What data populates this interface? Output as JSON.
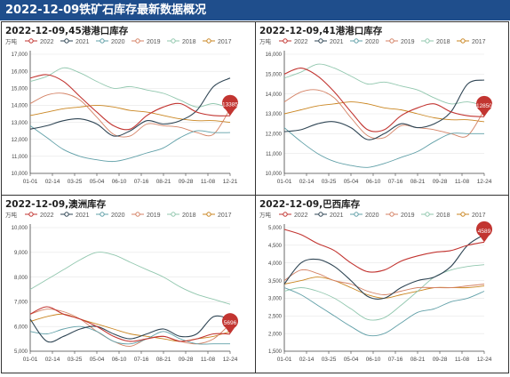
{
  "page_title": "2022-12-09铁矿石库存最新数据概况",
  "colors": {
    "2022": "#c23531",
    "2021": "#2f4554",
    "2020": "#61a0a8",
    "2019": "#d48265",
    "2018": "#91c7ae",
    "2017": "#ca8622"
  },
  "chart_data": [
    {
      "type": "line",
      "title": "2022-12-09,45港港口库存",
      "unit_label": "万吨",
      "x_ticks": [
        "01-01",
        "02-14",
        "03-25",
        "05-04",
        "06-10",
        "07-16",
        "08-21",
        "09-28",
        "11-08",
        "12-21"
      ],
      "ylim": [
        10000,
        17000
      ],
      "y_ticks": [
        "10,000",
        "11,000",
        "12,000",
        "13,000",
        "14,000",
        "15,000",
        "16,000",
        "17,000"
      ],
      "callout": "13385",
      "series": [
        {
          "name": "2022",
          "values": [
            15600,
            15800,
            15400,
            14500,
            13600,
            12800,
            12600,
            13400,
            13900,
            14100,
            13600,
            13400,
            13385
          ]
        },
        {
          "name": "2021",
          "values": [
            12600,
            12800,
            13100,
            13200,
            12900,
            12200,
            12500,
            13100,
            12900,
            13100,
            13700,
            15100,
            15600
          ]
        },
        {
          "name": "2020",
          "values": [
            12800,
            12100,
            11400,
            11000,
            10800,
            10700,
            10900,
            11200,
            11500,
            12100,
            12500,
            12400,
            12400
          ]
        },
        {
          "name": "2019",
          "values": [
            14100,
            14600,
            14700,
            14300,
            13300,
            12300,
            12200,
            12900,
            12800,
            12700,
            12400,
            12300,
            13800
          ]
        },
        {
          "name": "2018",
          "values": [
            15400,
            15700,
            16200,
            15900,
            15400,
            15000,
            15100,
            14900,
            14700,
            14300,
            13900,
            14100,
            13800
          ]
        },
        {
          "name": "2017",
          "values": [
            13400,
            13600,
            13800,
            13900,
            14000,
            13900,
            13700,
            13600,
            13400,
            13200,
            13100,
            13100,
            13000
          ]
        }
      ]
    },
    {
      "type": "line",
      "title": "2022-12-09,41港港口库存",
      "unit_label": "万吨",
      "x_ticks": [
        "01-01",
        "02-14",
        "03-25",
        "05-04",
        "06-10",
        "07-16",
        "08-21",
        "09-28",
        "11-08",
        "12-24"
      ],
      "ylim": [
        10000,
        16000
      ],
      "y_ticks": [
        "10,000",
        "11,000",
        "12,000",
        "13,000",
        "14,000",
        "15,000",
        "16,000"
      ],
      "callout": "12850",
      "series": [
        {
          "name": "2022",
          "values": [
            15000,
            15300,
            14900,
            14100,
            13100,
            12200,
            12200,
            12900,
            13300,
            13500,
            13100,
            12900,
            12850
          ]
        },
        {
          "name": "2021",
          "values": [
            12100,
            12200,
            12500,
            12600,
            12300,
            11700,
            12000,
            12500,
            12300,
            12500,
            13100,
            14500,
            14700
          ]
        },
        {
          "name": "2020",
          "values": [
            12300,
            11600,
            11000,
            10600,
            10400,
            10300,
            10500,
            10800,
            11100,
            11600,
            12000,
            12000,
            12000
          ]
        },
        {
          "name": "2019",
          "values": [
            13600,
            14100,
            14200,
            13800,
            12800,
            11900,
            11800,
            12400,
            12300,
            12200,
            12000,
            11900,
            13200
          ]
        },
        {
          "name": "2018",
          "values": [
            14800,
            15100,
            15500,
            15300,
            14900,
            14500,
            14600,
            14400,
            14200,
            13800,
            13500,
            13600,
            13400
          ]
        },
        {
          "name": "2017",
          "values": [
            13000,
            13200,
            13400,
            13500,
            13600,
            13500,
            13300,
            13200,
            13000,
            12800,
            12700,
            12700,
            12600
          ]
        }
      ]
    },
    {
      "type": "line",
      "title": "2022-12-09,澳洲库存",
      "unit_label": "万吨",
      "x_ticks": [
        "01-01",
        "02-14",
        "03-25",
        "05-04",
        "06-10",
        "07-16",
        "08-21",
        "09-28",
        "11-08",
        "12-24"
      ],
      "ylim": [
        5000,
        10000
      ],
      "y_ticks": [
        "5,000",
        "6,000",
        "7,000",
        "8,000",
        "9,000",
        "10,000"
      ],
      "callout": "5696",
      "series": [
        {
          "name": "2022",
          "values": [
            6500,
            6800,
            6500,
            6300,
            6000,
            5600,
            5400,
            5500,
            5600,
            5400,
            5500,
            5700,
            5696
          ]
        },
        {
          "name": "2021",
          "values": [
            6300,
            5400,
            5600,
            5900,
            6000,
            5700,
            5500,
            5700,
            5900,
            5600,
            5700,
            6400,
            6300
          ]
        },
        {
          "name": "2020",
          "values": [
            5800,
            5700,
            5900,
            6000,
            5800,
            5400,
            5300,
            5500,
            5800,
            5500,
            5300,
            5300,
            5300
          ]
        },
        {
          "name": "2019",
          "values": [
            6500,
            6700,
            6600,
            6300,
            5800,
            5400,
            5200,
            5500,
            5600,
            5400,
            5300,
            5500,
            6100
          ]
        },
        {
          "name": "2018",
          "values": [
            7500,
            7900,
            8300,
            8700,
            9000,
            8900,
            8600,
            8300,
            8000,
            7600,
            7300,
            7100,
            6900
          ]
        },
        {
          "name": "2017",
          "values": [
            6200,
            6400,
            6500,
            6300,
            6100,
            5900,
            5700,
            5600,
            5500,
            5400,
            5500,
            5600,
            5800
          ]
        }
      ]
    },
    {
      "type": "line",
      "title": "2022-12-09,巴西库存",
      "unit_label": "万吨",
      "x_ticks": [
        "01-01",
        "02-14",
        "03-25",
        "05-04",
        "06-10",
        "07-16",
        "08-21",
        "09-28",
        "11-08",
        "12-24"
      ],
      "ylim": [
        1500,
        5000
      ],
      "y_ticks": [
        "1,500",
        "2,000",
        "2,500",
        "3,000",
        "3,500",
        "4,000",
        "4,500",
        "5,000"
      ],
      "callout": "4589",
      "series": [
        {
          "name": "2022",
          "values": [
            4950,
            4800,
            4550,
            4350,
            4000,
            3750,
            3800,
            4050,
            4200,
            4300,
            4350,
            4500,
            4589
          ]
        },
        {
          "name": "2021",
          "values": [
            3400,
            4000,
            4100,
            3900,
            3500,
            3050,
            3000,
            3300,
            3500,
            3600,
            3900,
            4500,
            4800
          ]
        },
        {
          "name": "2020",
          "values": [
            3300,
            3100,
            2800,
            2500,
            2200,
            1950,
            2000,
            2300,
            2600,
            2700,
            2900,
            3000,
            3200
          ]
        },
        {
          "name": "2019",
          "values": [
            3500,
            3800,
            3700,
            3500,
            3400,
            3200,
            3100,
            3200,
            3300,
            3300,
            3300,
            3350,
            3400
          ]
        },
        {
          "name": "2018",
          "values": [
            3200,
            3300,
            3200,
            3000,
            2700,
            2400,
            2450,
            2800,
            3200,
            3600,
            3800,
            3900,
            3950
          ]
        },
        {
          "name": "2017",
          "values": [
            3400,
            3500,
            3600,
            3500,
            3300,
            3100,
            3000,
            3100,
            3200,
            3300,
            3300,
            3300,
            3350
          ]
        }
      ]
    }
  ]
}
